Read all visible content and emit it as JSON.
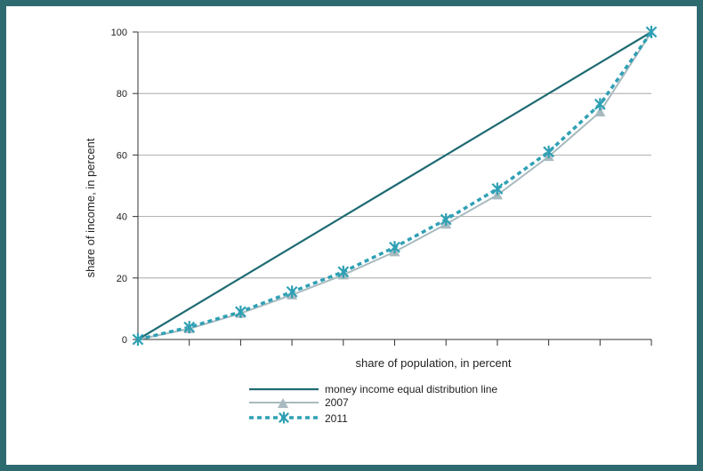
{
  "colors": {
    "frame": "#2d6b70",
    "background": "#98aeb8",
    "equality_line": "#1f6b73",
    "series_2007": "#a8babf",
    "series_2011": "#2fa0b4",
    "grid": "#9a9a9a"
  },
  "chart_data": {
    "type": "line",
    "title": "",
    "xlabel": "share of population, in percent",
    "ylabel": "share of  income, in percent",
    "xlim": [
      0,
      100
    ],
    "ylim": [
      0,
      100
    ],
    "y_ticks": [
      "0",
      "20",
      "40",
      "60",
      "80",
      "100"
    ],
    "grid": "horizontal",
    "legend_placement": "bottom-center",
    "x": [
      0,
      10,
      20,
      30,
      40,
      50,
      60,
      70,
      80,
      90,
      100
    ],
    "series": [
      {
        "name": "money income equal distribution line",
        "style": "solid-line",
        "values": [
          0,
          10,
          20,
          30,
          40,
          50,
          60,
          70,
          80,
          90,
          100
        ]
      },
      {
        "name": "2007",
        "style": "line-triangle",
        "values": [
          0,
          3.5,
          8.5,
          14.5,
          21,
          28.5,
          37.5,
          47,
          59.5,
          74,
          100
        ]
      },
      {
        "name": "2011",
        "style": "dotted-star",
        "values": [
          0,
          4,
          9,
          15.5,
          22,
          30,
          39,
          49,
          61,
          76.5,
          100
        ]
      }
    ]
  }
}
